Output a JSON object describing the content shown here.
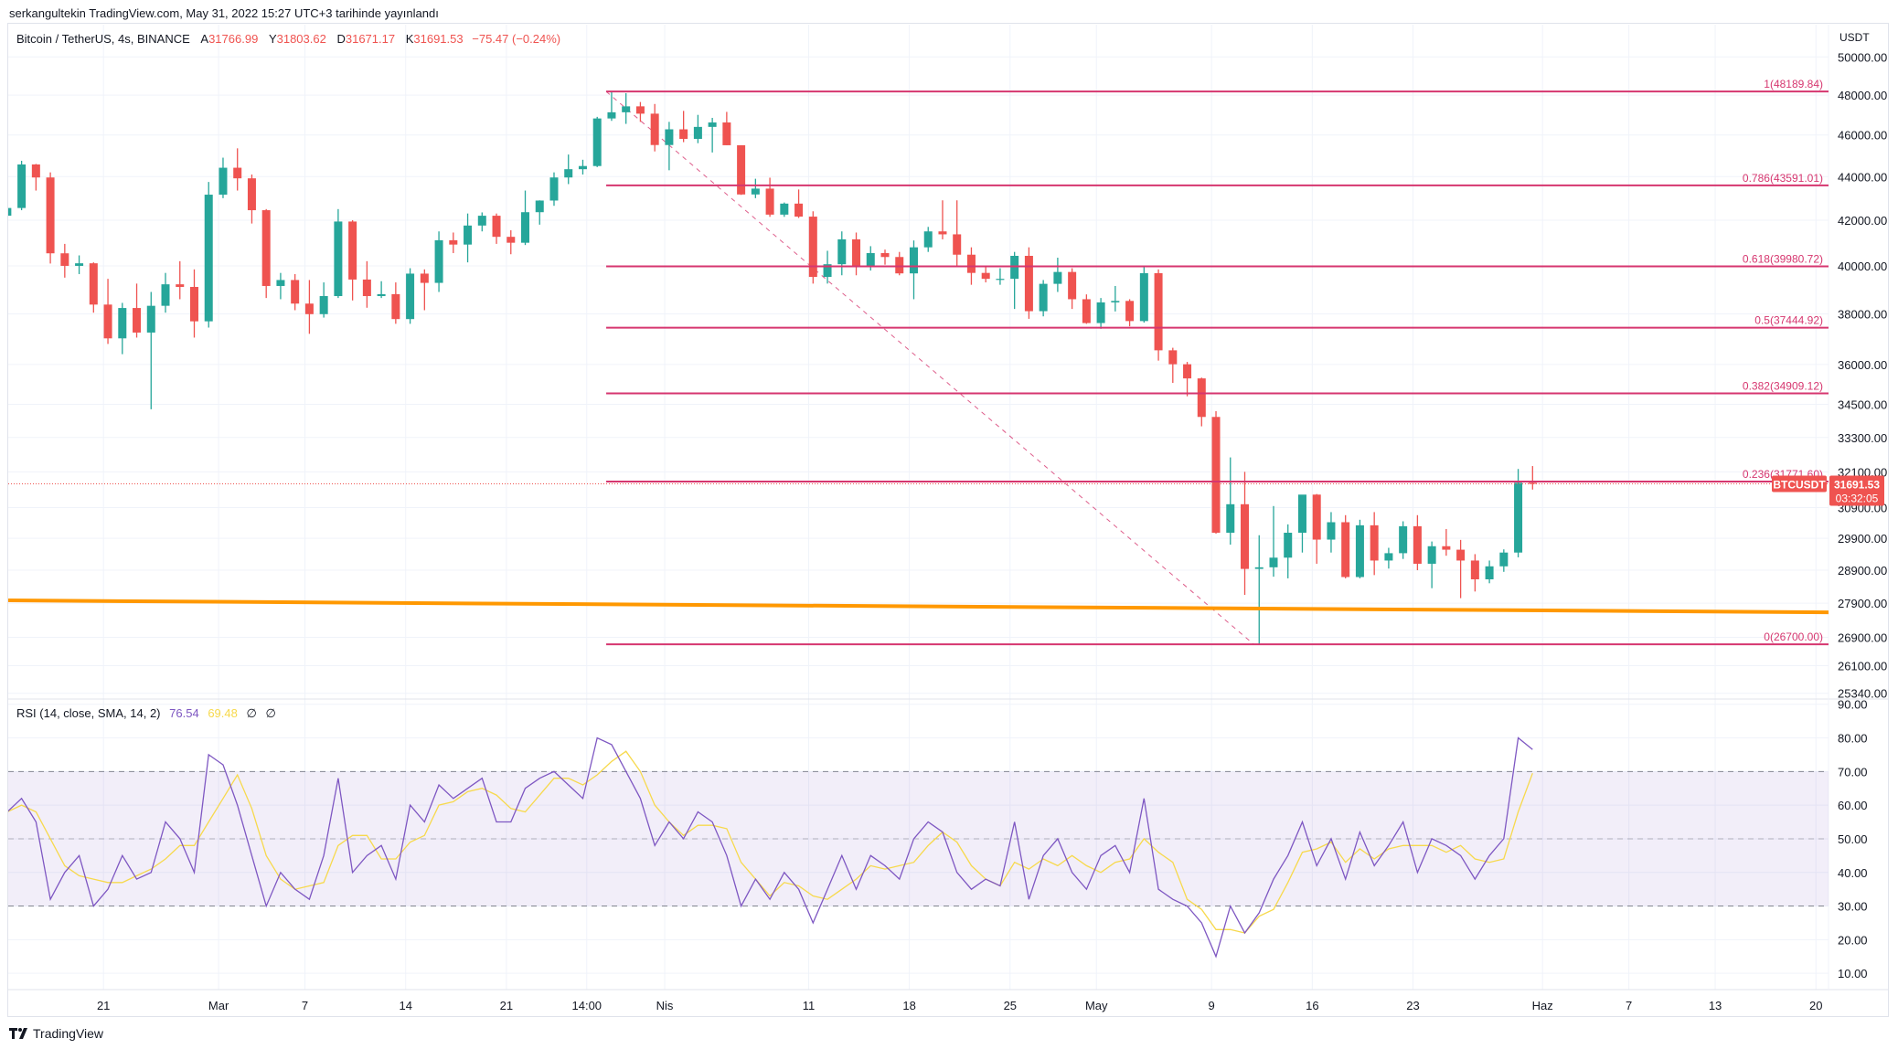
{
  "publication": "serkangultekin TradingView.com, May 31, 2022 15:27 UTC+3 tarihinde yayınlandı",
  "legend": {
    "symbol": "Bitcoin / TetherUS, 4s, BINANCE",
    "open_key": "A",
    "open": "31766.99",
    "high_key": "Y",
    "high": "31803.62",
    "low_key": "D",
    "low": "31671.17",
    "close_key": "K",
    "close": "31691.53",
    "change": "−75.47 (−0.24%)"
  },
  "rsi_legend": {
    "title": "RSI (14, close, SMA, 14, 2)",
    "rsi": "76.54",
    "sma": "69.48",
    "extra1": "∅",
    "extra2": "∅"
  },
  "logo": "TradingView",
  "colors": {
    "up": "#26a69a",
    "down": "#ef5350",
    "fib": "#d6366f",
    "trendline": "#ff9800",
    "rsi": "#7e57c2",
    "rsi_sma": "#f7d94c",
    "rsi_band": "#7e57c2",
    "grid": "#f0f3fa"
  },
  "chart_data": {
    "type": "candlestick",
    "price_axis": {
      "unit": "USDT",
      "scale": "log",
      "range": [
        25340,
        50000
      ],
      "ticks": [
        "50000.00",
        "48000.00",
        "46000.00",
        "44000.00",
        "42000.00",
        "40000.00",
        "38000.00",
        "36000.00",
        "34500.00",
        "33300.00",
        "32100.00",
        "30900.00",
        "29900.00",
        "28900.00",
        "27900.00",
        "26900.00",
        "26100.00",
        "25340.00"
      ]
    },
    "time_axis": {
      "ticks": [
        {
          "label": "21",
          "date": "2022-02-21"
        },
        {
          "label": "Mar",
          "date": "2022-03-01"
        },
        {
          "label": "7",
          "date": "2022-03-07"
        },
        {
          "label": "14",
          "date": "2022-03-14"
        },
        {
          "label": "21",
          "date": "2022-03-21"
        },
        {
          "label": "14:00",
          "date": "2022-03-26T14:00"
        },
        {
          "label": "Nis",
          "date": "2022-04-01"
        },
        {
          "label": "11",
          "date": "2022-04-11"
        },
        {
          "label": "18",
          "date": "2022-04-18"
        },
        {
          "label": "25",
          "date": "2022-04-25"
        },
        {
          "label": "May",
          "date": "2022-05-01"
        },
        {
          "label": "9",
          "date": "2022-05-09"
        },
        {
          "label": "16",
          "date": "2022-05-16"
        },
        {
          "label": "23",
          "date": "2022-05-23"
        },
        {
          "label": "Haz",
          "date": "2022-06-01"
        },
        {
          "label": "7",
          "date": "2022-06-07"
        },
        {
          "label": "13",
          "date": "2022-06-13"
        },
        {
          "label": "20",
          "date": "2022-06-20"
        }
      ]
    },
    "candles": {
      "start": "2022-02-14",
      "interval": "1D",
      "ohlc": [
        [
          42200,
          42800,
          41600,
          42550
        ],
        [
          42550,
          44750,
          42450,
          44575
        ],
        [
          44575,
          44600,
          43350,
          43960
        ],
        [
          43960,
          44200,
          40100,
          40540
        ],
        [
          40540,
          40950,
          39500,
          40000
        ],
        [
          40000,
          40450,
          39650,
          40110
        ],
        [
          40110,
          40150,
          38050,
          38380
        ],
        [
          38380,
          39450,
          36800,
          37020
        ],
        [
          37020,
          38450,
          36400,
          38240
        ],
        [
          38240,
          39250,
          37050,
          37250
        ],
        [
          37250,
          38900,
          34322,
          38330
        ],
        [
          38330,
          39700,
          38050,
          39220
        ],
        [
          39220,
          40200,
          38600,
          39110
        ],
        [
          39110,
          39850,
          37050,
          37700
        ],
        [
          37700,
          43750,
          37450,
          43160
        ],
        [
          43160,
          44900,
          43000,
          44420
        ],
        [
          44420,
          45350,
          43350,
          43920
        ],
        [
          43920,
          44100,
          41850,
          42450
        ],
        [
          42450,
          42500,
          38650,
          39150
        ],
        [
          39150,
          39700,
          38600,
          39400
        ],
        [
          39400,
          39650,
          38150,
          38420
        ],
        [
          38420,
          39400,
          37200,
          37990
        ],
        [
          37990,
          39300,
          37850,
          38730
        ],
        [
          38730,
          42500,
          38650,
          41940
        ],
        [
          41940,
          42000,
          38550,
          39420
        ],
        [
          39420,
          40200,
          38250,
          38730
        ],
        [
          38730,
          39350,
          38650,
          38810
        ],
        [
          38810,
          39300,
          37600,
          37790
        ],
        [
          37790,
          39900,
          37600,
          39670
        ],
        [
          39670,
          39850,
          38150,
          39280
        ],
        [
          39280,
          41500,
          38900,
          41110
        ],
        [
          41110,
          41450,
          40550,
          40920
        ],
        [
          40920,
          42300,
          40150,
          41760
        ],
        [
          41760,
          42350,
          41500,
          42200
        ],
        [
          42200,
          42300,
          40950,
          41260
        ],
        [
          41260,
          41550,
          40500,
          41000
        ],
        [
          41000,
          43350,
          40900,
          42360
        ],
        [
          42360,
          42900,
          41800,
          42890
        ],
        [
          42890,
          44200,
          42650,
          43960
        ],
        [
          43960,
          45050,
          43650,
          44350
        ],
        [
          44350,
          44800,
          44100,
          44500
        ],
        [
          44500,
          46900,
          44450,
          46820
        ],
        [
          46820,
          48189.84,
          46700,
          47130
        ],
        [
          47130,
          48100,
          46550,
          47430
        ],
        [
          47430,
          47650,
          46650,
          47060
        ],
        [
          47060,
          47550,
          45200,
          45510
        ],
        [
          45510,
          46650,
          44300,
          46280
        ],
        [
          46280,
          47200,
          45650,
          45810
        ],
        [
          45810,
          47000,
          45600,
          46400
        ],
        [
          46400,
          46850,
          45150,
          46620
        ],
        [
          46620,
          47150,
          45500,
          45500
        ],
        [
          45500,
          45500,
          43150,
          43170
        ],
        [
          43170,
          43900,
          43000,
          43440
        ],
        [
          43440,
          43950,
          42150,
          42250
        ],
        [
          42250,
          42800,
          42150,
          42750
        ],
        [
          42750,
          43400,
          42100,
          42160
        ],
        [
          42160,
          42400,
          39250,
          39530
        ],
        [
          39530,
          40650,
          39250,
          40070
        ],
        [
          40070,
          41500,
          39600,
          41150
        ],
        [
          41150,
          41450,
          39600,
          39940
        ],
        [
          39940,
          40850,
          39800,
          40550
        ],
        [
          40550,
          40700,
          40050,
          40380
        ],
        [
          40380,
          40600,
          39600,
          39680
        ],
        [
          39680,
          41100,
          38600,
          40800
        ],
        [
          40800,
          41700,
          40600,
          41500
        ],
        [
          41500,
          42900,
          41150,
          41370
        ],
        [
          41370,
          42900,
          40000,
          40480
        ],
        [
          40480,
          40800,
          39200,
          39700
        ],
        [
          39700,
          39950,
          39300,
          39450
        ],
        [
          39450,
          39900,
          39200,
          39450
        ],
        [
          39450,
          40600,
          38200,
          40430
        ],
        [
          40430,
          40800,
          37800,
          38110
        ],
        [
          38110,
          39400,
          37900,
          39240
        ],
        [
          39240,
          40350,
          38900,
          39740
        ],
        [
          39740,
          39900,
          38200,
          38600
        ],
        [
          38600,
          38800,
          37600,
          37630
        ],
        [
          37630,
          38650,
          37400,
          38470
        ],
        [
          38470,
          39150,
          38100,
          38530
        ],
        [
          38530,
          38600,
          37500,
          37710
        ],
        [
          37710,
          39950,
          37650,
          39690
        ],
        [
          39690,
          39850,
          36150,
          36550
        ],
        [
          36550,
          36650,
          35300,
          36010
        ],
        [
          36010,
          36100,
          34800,
          35470
        ],
        [
          35470,
          35500,
          33700,
          34040
        ],
        [
          34040,
          34250,
          30050,
          30080
        ],
        [
          30080,
          32600,
          29700,
          31010
        ],
        [
          31010,
          32100,
          28150,
          28940
        ],
        [
          28940,
          30000,
          26700,
          28990
        ],
        [
          28990,
          30950,
          28700,
          29290
        ],
        [
          29290,
          30350,
          28650,
          30080
        ],
        [
          30080,
          31300,
          29450,
          31330
        ],
        [
          31330,
          31350,
          29100,
          29860
        ],
        [
          29860,
          30750,
          29450,
          30420
        ],
        [
          30420,
          30650,
          28650,
          28690
        ],
        [
          28690,
          30500,
          28650,
          30320
        ],
        [
          30320,
          30750,
          28750,
          29200
        ],
        [
          29200,
          29600,
          28950,
          29430
        ],
        [
          29430,
          30450,
          29250,
          30290
        ],
        [
          30290,
          30650,
          28900,
          29100
        ],
        [
          29100,
          29800,
          28350,
          29650
        ],
        [
          29650,
          30200,
          29350,
          29540
        ],
        [
          29540,
          29850,
          28050,
          29200
        ],
        [
          29200,
          29400,
          28250,
          28620
        ],
        [
          28620,
          29200,
          28500,
          29020
        ],
        [
          29020,
          29550,
          28850,
          29450
        ],
        [
          29450,
          32200,
          29300,
          31730
        ],
        [
          31730,
          32300,
          31500,
          31691.53
        ]
      ]
    },
    "last_price": {
      "symbol": "BTCUSDT",
      "price": 31691.53,
      "price_label": "31691.53",
      "countdown": "03:32:05"
    },
    "fibonacci": {
      "start": {
        "date": "2022-03-28T03:00",
        "price": 48189.84
      },
      "end": {
        "date": "2022-05-12T03:00",
        "price": 26700.0
      },
      "levels": [
        {
          "ratio": 1,
          "price": 48189.84,
          "label": "1(48189.84)"
        },
        {
          "ratio": 0.786,
          "price": 43591.01,
          "label": "0.786(43591.01)"
        },
        {
          "ratio": 0.618,
          "price": 39980.72,
          "label": "0.618(39980.72)"
        },
        {
          "ratio": 0.5,
          "price": 37444.92,
          "label": "0.5(37444.92)"
        },
        {
          "ratio": 0.382,
          "price": 34909.12,
          "label": "0.382(34909.12)"
        },
        {
          "ratio": 0.236,
          "price": 31771.6,
          "label": "0.236(31771.60)"
        },
        {
          "ratio": 0,
          "price": 26700.0,
          "label": "0(26700.00)"
        }
      ]
    },
    "trendline": {
      "start": {
        "date": "2022-02-14",
        "price": 27983
      },
      "end": {
        "date": "2022-06-21",
        "price": 27630
      }
    },
    "rsi": {
      "range": [
        5,
        92
      ],
      "upper_band": 70,
      "middle": 50,
      "lower_band": 30,
      "ticks": [
        "90.00",
        "80.00",
        "70.00",
        "60.00",
        "50.00",
        "40.00",
        "30.00",
        "20.00",
        "10.00"
      ],
      "values": [
        58,
        62,
        55,
        32,
        40,
        45,
        30,
        35,
        45,
        38,
        40,
        55,
        50,
        40,
        75,
        72,
        60,
        45,
        30,
        40,
        35,
        32,
        45,
        68,
        40,
        45,
        48,
        38,
        60,
        55,
        66,
        62,
        65,
        68,
        55,
        55,
        65,
        68,
        70,
        66,
        62,
        80,
        78,
        70,
        62,
        48,
        55,
        50,
        58,
        55,
        45,
        30,
        38,
        32,
        40,
        35,
        25,
        35,
        45,
        35,
        45,
        42,
        38,
        50,
        55,
        52,
        40,
        35,
        38,
        36,
        55,
        32,
        45,
        50,
        40,
        35,
        45,
        48,
        40,
        62,
        35,
        32,
        30,
        25,
        15,
        30,
        22,
        28,
        38,
        45,
        55,
        42,
        50,
        38,
        52,
        42,
        48,
        55,
        40,
        50,
        48,
        45,
        38,
        45,
        50,
        80,
        76.54
      ],
      "sma": [
        58,
        60,
        58,
        50,
        42,
        39,
        38,
        37,
        37,
        39,
        41,
        44,
        48,
        48,
        55,
        62,
        69,
        59,
        45,
        38,
        35,
        36,
        37,
        48,
        51,
        51,
        44,
        44,
        49,
        51,
        60,
        61,
        64,
        65,
        63,
        59,
        58,
        63,
        68,
        68,
        66,
        69,
        73,
        76,
        70,
        60,
        55,
        51,
        54,
        54,
        53,
        43,
        38,
        33,
        37,
        36,
        33,
        32,
        35,
        38,
        42,
        41,
        42,
        43,
        48,
        52,
        49,
        42,
        38,
        36,
        43,
        41,
        44,
        42,
        45,
        42,
        40,
        43,
        44,
        50,
        46,
        43,
        32,
        29,
        23,
        23,
        22,
        27,
        29,
        37,
        46,
        47,
        49,
        43,
        47,
        44,
        47,
        48,
        48,
        48,
        46,
        48,
        44,
        43,
        44,
        58,
        69.48
      ]
    }
  }
}
